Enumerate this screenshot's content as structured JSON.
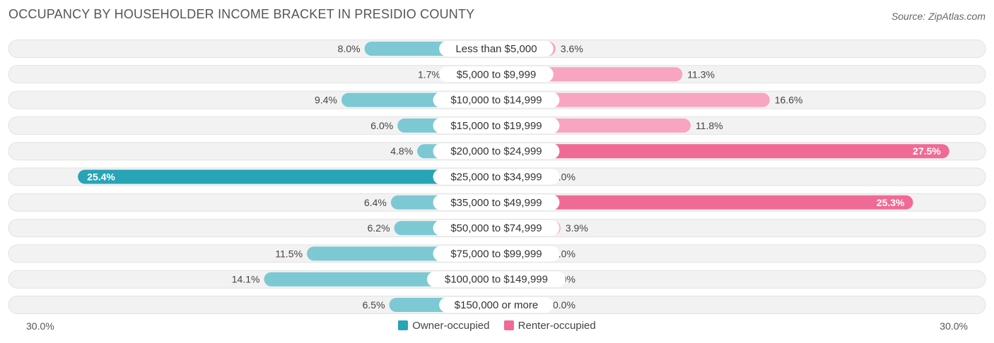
{
  "title": "OCCUPANCY BY HOUSEHOLDER INCOME BRACKET IN PRESIDIO COUNTY",
  "source": "Source: ZipAtlas.com",
  "axis": {
    "left_label": "30.0%",
    "right_label": "30.0%"
  },
  "legend": {
    "owner": "Owner-occupied",
    "renter": "Renter-occupied"
  },
  "colors": {
    "owner_light": "#7cc9d3",
    "owner_strong": "#27a4b6",
    "renter_light": "#f7a5c0",
    "renter_strong": "#f06a96",
    "row_bg": "#f2f2f2",
    "row_border": "#e2e2e2"
  },
  "chart_data": {
    "type": "bar",
    "orientation": "diverging-horizontal",
    "title": "OCCUPANCY BY HOUSEHOLDER INCOME BRACKET IN PRESIDIO COUNTY",
    "categories": [
      "Less than $5,000",
      "$5,000 to $9,999",
      "$10,000 to $14,999",
      "$15,000 to $19,999",
      "$20,000 to $24,999",
      "$25,000 to $34,999",
      "$35,000 to $49,999",
      "$50,000 to $74,999",
      "$75,000 to $99,999",
      "$100,000 to $149,999",
      "$150,000 or more"
    ],
    "series": [
      {
        "name": "Owner-occupied",
        "values": [
          8.0,
          1.7,
          9.4,
          6.0,
          4.8,
          25.4,
          6.4,
          6.2,
          11.5,
          14.1,
          6.5
        ]
      },
      {
        "name": "Renter-occupied",
        "values": [
          3.6,
          11.3,
          16.6,
          11.8,
          27.5,
          0.0,
          25.3,
          3.9,
          0.0,
          0.0,
          0.0
        ]
      }
    ],
    "xlim": [
      -30,
      30
    ],
    "value_suffix": "%"
  }
}
